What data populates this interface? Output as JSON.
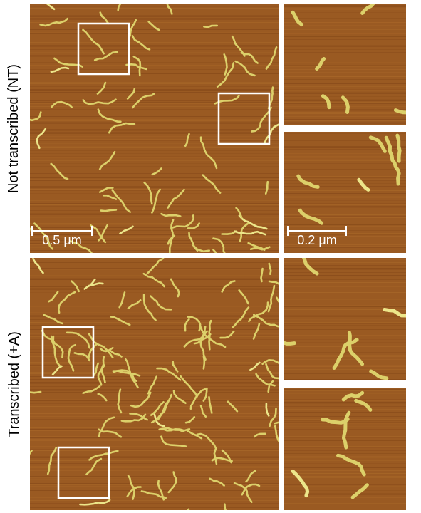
{
  "rows": [
    {
      "label": "Not transcribed (NT)"
    },
    {
      "label": "Transcribed (+A)"
    }
  ],
  "scalebars": {
    "main": "0.5 μm",
    "inset": "0.2 μm"
  },
  "colors": {
    "background": "#9a5a22",
    "background_dark": "#7e4215",
    "background_light": "#b06e2c",
    "molecule": "#dcd06a",
    "molecule_highlight": "#ece68a",
    "box": "#ffffff"
  }
}
